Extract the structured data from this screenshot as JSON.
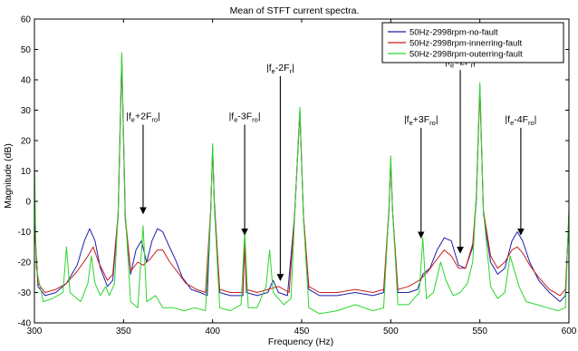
{
  "chart_data": {
    "type": "line",
    "title": "Mean of STFT current spectra.",
    "xlabel": "Frequency (Hz)",
    "ylabel": "Magnitude (dB)",
    "xlim": [
      300,
      600
    ],
    "ylim": [
      -40,
      60
    ],
    "xticks": [
      300,
      350,
      400,
      450,
      500,
      550,
      600
    ],
    "yticks": [
      -40,
      -30,
      -20,
      -10,
      0,
      10,
      20,
      30,
      40,
      50,
      60
    ],
    "grid": false,
    "legend_position": "top-right",
    "series": [
      {
        "name": "50Hz-2998rpm-no-fault",
        "color": "#1f1fa8",
        "points": [
          [
            300,
            -6
          ],
          [
            302,
            -28
          ],
          [
            306,
            -31
          ],
          [
            312,
            -30
          ],
          [
            318,
            -27
          ],
          [
            324,
            -21
          ],
          [
            328,
            -13
          ],
          [
            331,
            -9
          ],
          [
            334,
            -13
          ],
          [
            337,
            -22
          ],
          [
            341,
            -28
          ],
          [
            344,
            -26
          ],
          [
            347,
            -5
          ],
          [
            349,
            47
          ],
          [
            351,
            -6
          ],
          [
            354,
            -24
          ],
          [
            357,
            -16
          ],
          [
            360,
            -13
          ],
          [
            363,
            -20
          ],
          [
            366,
            -13
          ],
          [
            369,
            -9
          ],
          [
            372,
            -10
          ],
          [
            375,
            -14
          ],
          [
            379,
            -19
          ],
          [
            383,
            -25
          ],
          [
            388,
            -29
          ],
          [
            393,
            -30
          ],
          [
            397,
            -31
          ],
          [
            399,
            -2
          ],
          [
            400,
            18
          ],
          [
            401,
            0
          ],
          [
            404,
            -30
          ],
          [
            410,
            -31
          ],
          [
            417,
            -31
          ],
          [
            418,
            -13
          ],
          [
            419,
            -30
          ],
          [
            425,
            -31
          ],
          [
            431,
            -30
          ],
          [
            434,
            -26
          ],
          [
            437,
            -30
          ],
          [
            442,
            -31
          ],
          [
            446,
            -5
          ],
          [
            449,
            30
          ],
          [
            451,
            -5
          ],
          [
            454,
            -29
          ],
          [
            460,
            -31
          ],
          [
            470,
            -31
          ],
          [
            480,
            -30
          ],
          [
            490,
            -31
          ],
          [
            496,
            -30
          ],
          [
            499,
            -3
          ],
          [
            500,
            14
          ],
          [
            501,
            -3
          ],
          [
            504,
            -30
          ],
          [
            510,
            -30
          ],
          [
            515,
            -29
          ],
          [
            518,
            -24
          ],
          [
            522,
            -22
          ],
          [
            526,
            -16
          ],
          [
            530,
            -12
          ],
          [
            534,
            -13
          ],
          [
            538,
            -21
          ],
          [
            542,
            -22
          ],
          [
            546,
            -15
          ],
          [
            548,
            0
          ],
          [
            550,
            38
          ],
          [
            552,
            -4
          ],
          [
            556,
            -20
          ],
          [
            560,
            -24
          ],
          [
            564,
            -22
          ],
          [
            568,
            -13
          ],
          [
            571,
            -10
          ],
          [
            574,
            -13
          ],
          [
            578,
            -20
          ],
          [
            583,
            -26
          ],
          [
            589,
            -30
          ],
          [
            595,
            -33
          ],
          [
            598,
            -31
          ],
          [
            600,
            -4
          ]
        ]
      },
      {
        "name": "50Hz-2998rpm-innerring-fault",
        "color": "#c81e1e",
        "points": [
          [
            300,
            -8
          ],
          [
            302,
            -27
          ],
          [
            306,
            -30
          ],
          [
            312,
            -29
          ],
          [
            318,
            -27
          ],
          [
            324,
            -23
          ],
          [
            330,
            -18
          ],
          [
            333,
            -15
          ],
          [
            336,
            -20
          ],
          [
            341,
            -26
          ],
          [
            344,
            -24
          ],
          [
            347,
            -4
          ],
          [
            349,
            48
          ],
          [
            351,
            -5
          ],
          [
            354,
            -23
          ],
          [
            358,
            -20
          ],
          [
            361,
            -21
          ],
          [
            365,
            -19
          ],
          [
            369,
            -16
          ],
          [
            372,
            -16
          ],
          [
            376,
            -20
          ],
          [
            380,
            -23
          ],
          [
            385,
            -27
          ],
          [
            391,
            -29
          ],
          [
            396,
            -30
          ],
          [
            399,
            -2
          ],
          [
            400,
            17
          ],
          [
            401,
            -1
          ],
          [
            404,
            -29
          ],
          [
            410,
            -30
          ],
          [
            417,
            -30
          ],
          [
            418,
            -14
          ],
          [
            419,
            -29
          ],
          [
            425,
            -30
          ],
          [
            431,
            -29
          ],
          [
            437,
            -28
          ],
          [
            443,
            -30
          ],
          [
            446,
            -5
          ],
          [
            449,
            29
          ],
          [
            451,
            -5
          ],
          [
            454,
            -28
          ],
          [
            460,
            -30
          ],
          [
            470,
            -30
          ],
          [
            480,
            -29
          ],
          [
            490,
            -30
          ],
          [
            496,
            -29
          ],
          [
            499,
            -2
          ],
          [
            500,
            13
          ],
          [
            501,
            -3
          ],
          [
            504,
            -29
          ],
          [
            510,
            -28
          ],
          [
            516,
            -26
          ],
          [
            521,
            -23
          ],
          [
            526,
            -19
          ],
          [
            530,
            -16
          ],
          [
            534,
            -18
          ],
          [
            538,
            -22
          ],
          [
            542,
            -22
          ],
          [
            546,
            -14
          ],
          [
            548,
            1
          ],
          [
            550,
            37
          ],
          [
            552,
            -3
          ],
          [
            556,
            -18
          ],
          [
            560,
            -22
          ],
          [
            564,
            -20
          ],
          [
            568,
            -16
          ],
          [
            571,
            -15
          ],
          [
            574,
            -17
          ],
          [
            578,
            -21
          ],
          [
            583,
            -25
          ],
          [
            589,
            -29
          ],
          [
            595,
            -31
          ],
          [
            598,
            -29
          ],
          [
            600,
            -6
          ]
        ]
      },
      {
        "name": "50Hz-2998rpm-outerring-fault",
        "color": "#2cd52c",
        "points": [
          [
            300,
            14
          ],
          [
            301,
            -22
          ],
          [
            305,
            -33
          ],
          [
            310,
            -32
          ],
          [
            316,
            -30
          ],
          [
            318,
            -15
          ],
          [
            320,
            -30
          ],
          [
            326,
            -33
          ],
          [
            330,
            -27
          ],
          [
            332,
            -18
          ],
          [
            334,
            -27
          ],
          [
            337,
            -31
          ],
          [
            340,
            -28
          ],
          [
            342,
            -31
          ],
          [
            345,
            -27
          ],
          [
            347,
            -3
          ],
          [
            349,
            49
          ],
          [
            351,
            -4
          ],
          [
            354,
            -33
          ],
          [
            358,
            -35
          ],
          [
            361,
            -8
          ],
          [
            363,
            -33
          ],
          [
            368,
            -31
          ],
          [
            372,
            -35
          ],
          [
            378,
            -35
          ],
          [
            384,
            -36
          ],
          [
            390,
            -35
          ],
          [
            396,
            -36
          ],
          [
            399,
            -3
          ],
          [
            400,
            19
          ],
          [
            401,
            -2
          ],
          [
            404,
            -35
          ],
          [
            410,
            -36
          ],
          [
            416,
            -34
          ],
          [
            418,
            -10
          ],
          [
            420,
            -35
          ],
          [
            425,
            -35
          ],
          [
            430,
            -28
          ],
          [
            432,
            -16
          ],
          [
            434,
            -30
          ],
          [
            440,
            -34
          ],
          [
            444,
            -32
          ],
          [
            446,
            -6
          ],
          [
            449,
            31
          ],
          [
            451,
            -6
          ],
          [
            454,
            -35
          ],
          [
            460,
            -37
          ],
          [
            470,
            -36
          ],
          [
            480,
            -34
          ],
          [
            490,
            -36
          ],
          [
            496,
            -35
          ],
          [
            499,
            -2
          ],
          [
            500,
            15
          ],
          [
            501,
            -3
          ],
          [
            504,
            -34
          ],
          [
            510,
            -34
          ],
          [
            516,
            -30
          ],
          [
            518,
            -12
          ],
          [
            520,
            -32
          ],
          [
            524,
            -30
          ],
          [
            528,
            -20
          ],
          [
            531,
            -26
          ],
          [
            535,
            -31
          ],
          [
            539,
            -30
          ],
          [
            543,
            -27
          ],
          [
            546,
            -20
          ],
          [
            548,
            2
          ],
          [
            550,
            39
          ],
          [
            552,
            -3
          ],
          [
            556,
            -28
          ],
          [
            560,
            -32
          ],
          [
            564,
            -30
          ],
          [
            567,
            -18
          ],
          [
            569,
            -22
          ],
          [
            572,
            -28
          ],
          [
            576,
            -33
          ],
          [
            582,
            -34
          ],
          [
            588,
            -35
          ],
          [
            594,
            -36
          ],
          [
            598,
            -35
          ],
          [
            600,
            -2
          ]
        ]
      }
    ],
    "annotations": [
      {
        "base": "|f",
        "sub1": "e",
        "mid": "+2F",
        "sub2": "ro",
        "end": "|",
        "x": 361,
        "y_arrow_end": -4,
        "y_label": 27
      },
      {
        "base": "|f",
        "sub1": "e",
        "mid": "-3F",
        "sub2": "ro",
        "end": "|",
        "x": 418,
        "y_arrow_end": -11,
        "y_label": 27
      },
      {
        "base": "|f",
        "sub1": "e",
        "mid": "-2F",
        "sub2": "r",
        "end": "|",
        "x": 438,
        "y_arrow_end": -26,
        "y_label": 43
      },
      {
        "base": "|f",
        "sub1": "e",
        "mid": "+3F",
        "sub2": "ro",
        "end": "|",
        "x": 517,
        "y_arrow_end": -12,
        "y_label": 26
      },
      {
        "base": "|f",
        "sub1": "e",
        "mid": "+2F",
        "sub2": "r",
        "end": "|",
        "x": 539,
        "y_arrow_end": -17,
        "y_label": 45
      },
      {
        "base": "|f",
        "sub1": "e",
        "mid": "-4F",
        "sub2": "ro",
        "end": "|",
        "x": 573,
        "y_arrow_end": -11,
        "y_label": 26
      }
    ]
  }
}
